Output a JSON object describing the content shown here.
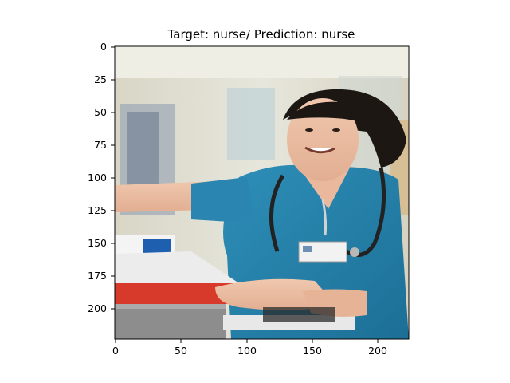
{
  "figure": {
    "title": "Target: nurse/ Prediction: nurse",
    "image_subject": "smiling nurse in teal scrubs with stethoscope pushing a medical cart",
    "x_ticks": [
      "0",
      "50",
      "100",
      "150",
      "200"
    ],
    "y_ticks": [
      "0",
      "25",
      "50",
      "75",
      "100",
      "125",
      "150",
      "175",
      "200"
    ]
  }
}
